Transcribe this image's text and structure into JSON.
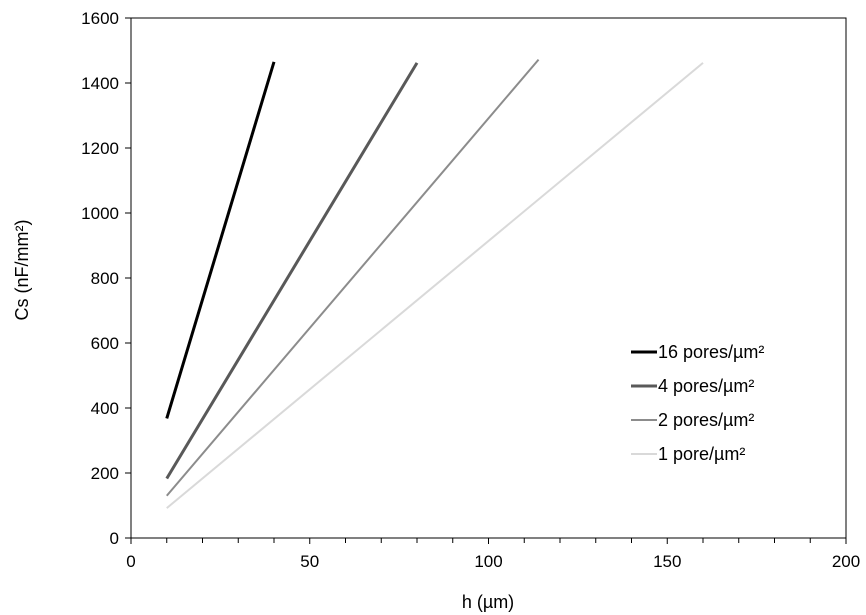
{
  "chart_data": {
    "type": "line",
    "title": "",
    "xlabel": "h (µm)",
    "ylabel": "Cs (nF/mm²)",
    "xlim": [
      0,
      200
    ],
    "ylim": [
      0,
      1600
    ],
    "x_ticks": [
      0,
      50,
      100,
      150,
      200
    ],
    "x_minor_ticks": [
      10,
      20,
      30,
      40,
      60,
      70,
      80,
      90,
      110,
      120,
      130,
      140,
      160,
      170,
      180,
      190
    ],
    "y_ticks": [
      0,
      200,
      400,
      600,
      800,
      1000,
      1200,
      1400,
      1600
    ],
    "x_tick_labels": [
      "0",
      "50",
      "100",
      "150",
      "200"
    ],
    "y_tick_labels": [
      "0",
      "200",
      "400",
      "600",
      "800",
      "1000",
      "1200",
      "1400",
      "1600"
    ],
    "grid": false,
    "legend_position": "right",
    "series": [
      {
        "name": "16 pores/µm²",
        "color": "#000000",
        "x": [
          10,
          40
        ],
        "y": [
          368,
          1465
        ]
      },
      {
        "name": "4 pores/µm²",
        "color": "#595959",
        "x": [
          10,
          80
        ],
        "y": [
          183,
          1462
        ]
      },
      {
        "name": "2 pores/µm²",
        "color": "#8c8c8c",
        "x": [
          10,
          114
        ],
        "y": [
          130,
          1472
        ]
      },
      {
        "name": "1 pore/µm²",
        "color": "#d9d9d9",
        "x": [
          10,
          160
        ],
        "y": [
          92,
          1462
        ]
      }
    ]
  }
}
